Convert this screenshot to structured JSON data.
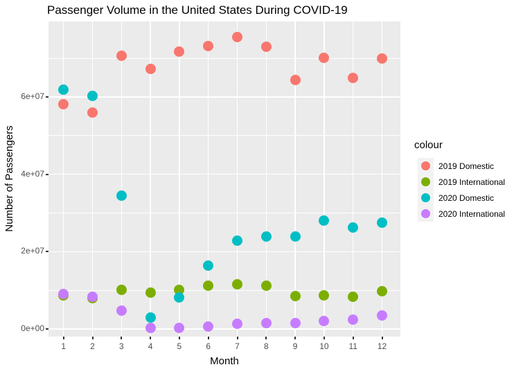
{
  "title": "Passenger Volume in the United States During COVID-19",
  "chart_data": {
    "type": "scatter",
    "xlabel": "Month",
    "ylabel": "Number of Passengers",
    "x": [
      1,
      2,
      3,
      4,
      5,
      6,
      7,
      8,
      9,
      10,
      11,
      12
    ],
    "x_tick_labels": [
      "1",
      "2",
      "3",
      "4",
      "5",
      "6",
      "7",
      "8",
      "9",
      "10",
      "11",
      "12"
    ],
    "y_ticks": [
      {
        "value": 0,
        "label": "0e+00"
      },
      {
        "value": 20000000,
        "label": "2e+07"
      },
      {
        "value": 40000000,
        "label": "4e+07"
      },
      {
        "value": 60000000,
        "label": "6e+07"
      }
    ],
    "y_minor_gridlines": [
      10000000,
      30000000,
      50000000,
      70000000
    ],
    "ylim": [
      -3600000,
      79300000
    ],
    "grid": true,
    "panel_bg": "#EBEBEB",
    "grid_color": "#FFFFFF",
    "axis_text_color": "#4D4D4D",
    "legend": {
      "title": "colour",
      "position": "right",
      "key_bg": "#F2F2F2"
    },
    "series": [
      {
        "name": "2019 Domestic",
        "color": "#F8766D",
        "values": [
          58200000,
          56000000,
          70600000,
          67200000,
          71800000,
          73100000,
          75500000,
          72900000,
          64400000,
          70100000,
          65000000,
          70000000
        ]
      },
      {
        "name": "2019 International",
        "color": "#7CAE00",
        "values": [
          8700000,
          8000000,
          10200000,
          9400000,
          10100000,
          11200000,
          11600000,
          11200000,
          8500000,
          8700000,
          8300000,
          9700000
        ]
      },
      {
        "name": "2020 Domestic",
        "color": "#00BFC4",
        "values": [
          61800000,
          60200000,
          34500000,
          2900000,
          8200000,
          16300000,
          22900000,
          24000000,
          24000000,
          28100000,
          26300000,
          27500000
        ]
      },
      {
        "name": "2020 International",
        "color": "#C77CFF",
        "values": [
          9000000,
          8400000,
          4800000,
          300000,
          200000,
          600000,
          1300000,
          1500000,
          1600000,
          2000000,
          2500000,
          3500000
        ]
      }
    ]
  }
}
